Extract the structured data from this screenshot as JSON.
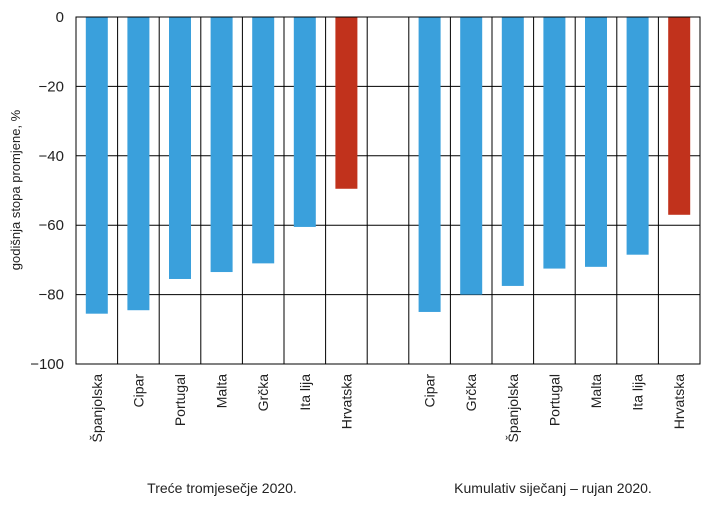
{
  "chart_data": {
    "type": "bar",
    "ylabel": "godišnja stopa promjene, %",
    "ylim": [
      -100,
      0
    ],
    "yticks": [
      "0",
      "−20",
      "−40",
      "−60",
      "−80",
      "−100"
    ],
    "ytick_values": [
      0,
      -20,
      -40,
      -60,
      -80,
      -100
    ],
    "colors": {
      "default": "#3aa0dc",
      "highlight": "#c1321c",
      "grid": "#000000"
    },
    "groups": [
      {
        "title": "Treće tromjesečje 2020.",
        "categories": [
          "Španjolska",
          "Cipar",
          "Portugal",
          "Malta",
          "Grčka",
          "Ita lija",
          "Hrvatska"
        ],
        "values": [
          -85.5,
          -84.5,
          -75.5,
          -73.5,
          -71,
          -60.5,
          -49.5
        ],
        "highlight": [
          false,
          false,
          false,
          false,
          false,
          false,
          true
        ]
      },
      {
        "title": "Kumulativ siječanj – rujan 2020.",
        "categories": [
          "Cipar",
          "Grčka",
          "Španjolska",
          "Portugal",
          "Malta",
          "Ita lija",
          "Hrvatska"
        ],
        "values": [
          -85,
          -80,
          -77.5,
          -72.5,
          -72,
          -68.5,
          -57
        ],
        "highlight": [
          false,
          false,
          false,
          false,
          false,
          false,
          true
        ]
      }
    ]
  }
}
